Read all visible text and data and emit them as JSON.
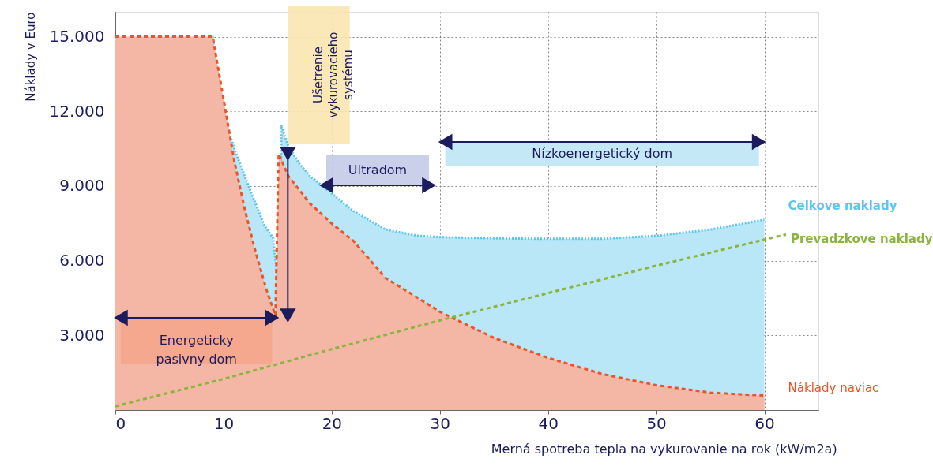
{
  "chart_data": {
    "type": "area",
    "xlabel": "Merná spotreba tepla na vykurovanie na rok (kW/m2a)",
    "ylabel": "Náklady v Euro",
    "xlim": [
      0,
      65
    ],
    "xticks": [
      0,
      10,
      20,
      30,
      40,
      50,
      60
    ],
    "ylim": [
      0,
      16000
    ],
    "yticks": [
      {
        "value": 3000,
        "label": "3.000"
      },
      {
        "value": 6000,
        "label": "6.000"
      },
      {
        "value": 9000,
        "label": "9.000"
      },
      {
        "value": 12000,
        "label": "12.000"
      },
      {
        "value": 15000,
        "label": "15.000"
      }
    ],
    "grid": true,
    "series": [
      {
        "name": "Celkove naklady",
        "type": "area",
        "color": "#5cc6ee",
        "line_style": "dotted",
        "x": [
          9,
          9.9,
          11,
          12.4,
          13.8,
          14.6,
          15.2,
          15.35,
          16,
          17,
          18,
          20,
          22,
          25,
          28,
          30,
          35,
          40,
          45,
          50,
          55,
          60
        ],
        "values": [
          15000,
          12000,
          10500,
          8900,
          7400,
          6900,
          4300,
          11400,
          10600,
          9900,
          9400,
          8700,
          8000,
          7250,
          7000,
          6950,
          6900,
          6880,
          6880,
          7000,
          7250,
          7650
        ]
      },
      {
        "name": "Náklady naviac",
        "type": "area",
        "color": "#e8552a",
        "line_style": "dashed",
        "x": [
          0,
          9,
          10,
          11,
          12,
          13,
          14,
          14.8,
          15.1,
          16,
          18,
          20,
          22,
          25,
          28,
          30,
          35,
          40,
          45,
          50,
          55,
          60
        ],
        "values": [
          15000,
          15000,
          12500,
          10000,
          8000,
          6300,
          4800,
          3800,
          10300,
          9400,
          8300,
          7500,
          6800,
          5300,
          4500,
          3950,
          2900,
          2100,
          1450,
          1000,
          700,
          580
        ]
      },
      {
        "name": "Prevadzkove naklady",
        "type": "line",
        "color": "#8ab43c",
        "line_style": "dashed",
        "x": [
          0,
          10,
          20,
          30,
          40,
          50,
          60,
          62
        ],
        "values": [
          150,
          1250,
          2450,
          3600,
          4700,
          5800,
          6850,
          7050
        ]
      }
    ],
    "bands": [
      {
        "axis": "x",
        "from": 0.5,
        "to": 14.5,
        "label": "Energeticky\npasivny dom",
        "color": "#f5a68c"
      },
      {
        "axis": "x",
        "from": 19.5,
        "to": 29,
        "label": "Ultradom",
        "color": "#c5cbe8"
      },
      {
        "axis": "x",
        "from": 30.5,
        "to": 59.5,
        "label": "Nízkoenergetický dom",
        "color": "#bfe6f5"
      }
    ],
    "annotations": [
      "Ušetrenie\nvykurovacieho\nsystému"
    ]
  }
}
